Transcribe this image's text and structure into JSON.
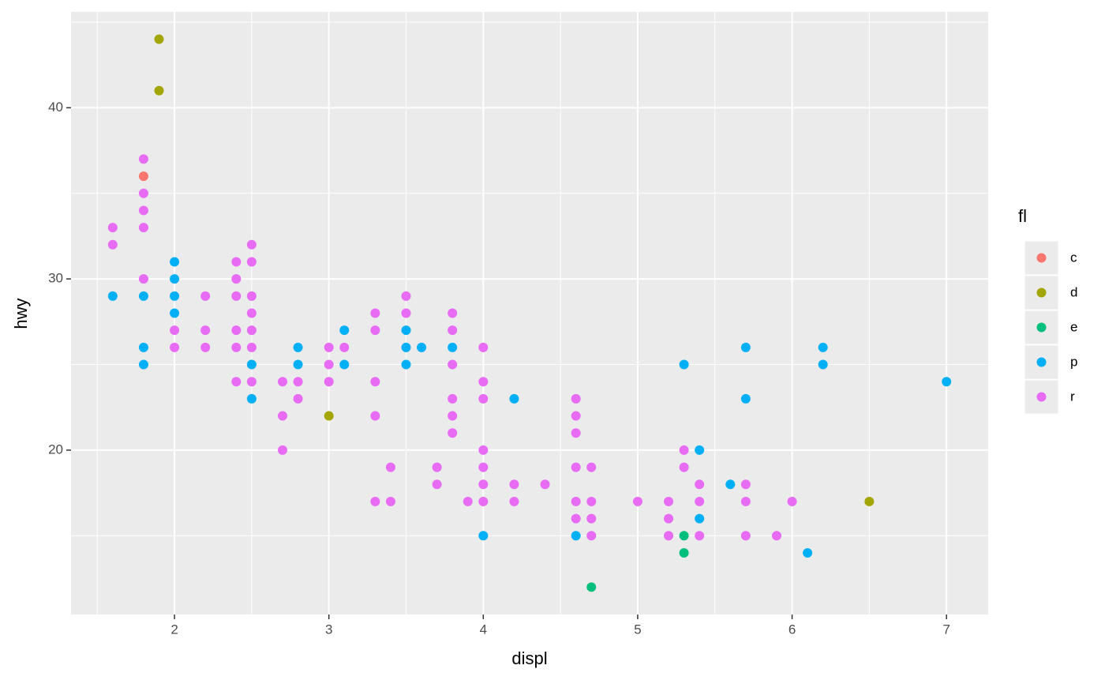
{
  "chart_data": {
    "type": "scatter",
    "x_label": "displ",
    "y_label": "hwy",
    "legend_title": "fl",
    "xlim": [
      1.33,
      7.27
    ],
    "ylim": [
      10.4,
      45.6
    ],
    "xticks": [
      2,
      3,
      4,
      5,
      6,
      7
    ],
    "yticks": [
      20,
      30,
      40
    ],
    "grid": true,
    "legend": "right",
    "series": [
      {
        "name": "c",
        "color": "#F8766D",
        "x": [
          1.8
        ],
        "values": [
          36
        ]
      },
      {
        "name": "d",
        "color": "#A3A500",
        "x": [
          1.9,
          1.9,
          3.0,
          6.5
        ],
        "values": [
          44,
          41,
          22,
          17
        ]
      },
      {
        "name": "e",
        "color": "#00BF7D",
        "x": [
          4.7,
          5.3,
          5.3
        ],
        "values": [
          12,
          15,
          14
        ]
      },
      {
        "name": "p",
        "color": "#00B0F6",
        "x": [
          1.6,
          1.8,
          1.8,
          1.8,
          2.0,
          2.0,
          2.0,
          2.0,
          2.5,
          2.5,
          2.8,
          2.8,
          3.1,
          3.1,
          3.5,
          3.5,
          3.5,
          3.6,
          3.8,
          4.2,
          4.0,
          4.6,
          5.3,
          5.4,
          5.4,
          5.6,
          5.7,
          5.7,
          6.1,
          6.2,
          6.2,
          7.0
        ],
        "values": [
          29,
          29,
          26,
          25,
          31,
          30,
          29,
          28,
          25,
          23,
          26,
          25,
          27,
          25,
          27,
          26,
          25,
          26,
          26,
          23,
          15,
          15,
          25,
          20,
          16,
          18,
          26,
          23,
          14,
          26,
          25,
          24
        ]
      },
      {
        "name": "r",
        "color": "#E76BF3",
        "x": [
          1.6,
          1.6,
          1.8,
          1.8,
          1.8,
          1.8,
          1.8,
          2.0,
          2.0,
          2.2,
          2.2,
          2.2,
          2.4,
          2.4,
          2.4,
          2.4,
          2.4,
          2.4,
          2.5,
          2.5,
          2.5,
          2.5,
          2.5,
          2.5,
          2.5,
          2.7,
          2.7,
          2.7,
          2.8,
          2.8,
          3.0,
          3.0,
          3.0,
          3.1,
          3.3,
          3.3,
          3.3,
          3.3,
          3.3,
          3.4,
          3.4,
          3.5,
          3.5,
          3.7,
          3.7,
          3.8,
          3.8,
          3.8,
          3.8,
          3.8,
          3.8,
          3.9,
          4.0,
          4.0,
          4.0,
          4.0,
          4.0,
          4.0,
          4.0,
          4.2,
          4.2,
          4.4,
          4.6,
          4.6,
          4.6,
          4.6,
          4.6,
          4.6,
          4.7,
          4.7,
          4.7,
          4.7,
          5.0,
          5.2,
          5.2,
          5.2,
          5.3,
          5.3,
          5.4,
          5.4,
          5.4,
          5.7,
          5.7,
          5.7,
          5.9,
          6.0
        ],
        "values": [
          33,
          32,
          37,
          35,
          34,
          33,
          30,
          27,
          26,
          29,
          27,
          26,
          31,
          30,
          29,
          27,
          26,
          24,
          32,
          31,
          29,
          28,
          27,
          26,
          24,
          24,
          22,
          20,
          24,
          23,
          26,
          25,
          24,
          26,
          28,
          27,
          24,
          22,
          17,
          19,
          17,
          29,
          28,
          19,
          18,
          28,
          27,
          25,
          23,
          22,
          21,
          17,
          26,
          24,
          23,
          20,
          19,
          18,
          17,
          18,
          17,
          18,
          23,
          22,
          21,
          19,
          17,
          16,
          19,
          17,
          16,
          15,
          17,
          17,
          16,
          15,
          20,
          19,
          18,
          17,
          15,
          18,
          17,
          15,
          15,
          17
        ]
      }
    ]
  }
}
